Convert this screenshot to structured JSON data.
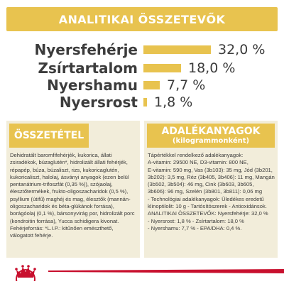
{
  "banner": {
    "title": "ANALITIKAI ÖSSZETEVŐK"
  },
  "nutrients": [
    {
      "label": "Nyersfehérje",
      "value": "32,0 %",
      "fraction": 0.32
    },
    {
      "label": "Zsírtartalom",
      "value": "18,0 %",
      "fraction": 0.18
    },
    {
      "label": "Nyershamu",
      "value": "7,7 %",
      "fraction": 0.077
    },
    {
      "label": "Nyersrost",
      "value": "1,8 %",
      "fraction": 0.018
    }
  ],
  "composition": {
    "title": "ÖSSZETÉTEL",
    "text": "Dehidratált baromfifehérjék, kukorica, állati zsiradékok, búzaglutén*, hidrolizált állati fehérjék, répapép, búza, búzaliszt, rizs, kukoricaglutén, kukoricaliszt, halolaj, ásványi anyagok (ezen belül pentanátrium-trifoszfát (0,35 %)), szójaolaj, élesztőtermékek, frukto-oligoszacharidok (0,5 %), psyllium (útifű) maghéj és mag, élesztők (mannán-oligoszacharidok és béta-glükánok forrása), borágóolaj (0,1 %), bársonyvirág por, hidrolizált porc (kondroitin forrása), Yucca schidigera kivonat. Fehérjeforrás: *L.I.P.: kitűnően emészthető, válogatott fehérje."
  },
  "additives": {
    "title": "ADALÉKANYAGOK",
    "subtitle": "(kilogrammonként)",
    "lines": [
      "Tápértékkel rendelkező adalékanyagok:",
      "A-vitamin: 29500 NE, D3-vitamin: 800 NE,",
      "E-vitamin: 590 mg, Vas (3b103): 35 mg, Jód (3b201,",
      "3b202): 3,5 mg, Réz (3b405, 3b406): 11 mg, Mangán",
      "(3b502, 3b504): 46 mg, Cink (3b603, 3b605,",
      "3b606): 96 mg, Szelén (3b801, 3b811): 0,06 mg",
      "- Technológiai adalékanyagok: Üledékes eredetű",
      "klinoptilolit: 10 g - Tartósítószerek - Antioxidánsok.",
      "ANALITIKAI ÖSSZETEVŐK: Nyersfehérje: 32,0 %",
      "- Nyersrost: 1,8 % - Zsírtartalom: 18,0 %",
      "- Nyershamu: 7,7 % - EPA/DHA: 0,4 %."
    ]
  },
  "colors": {
    "accent": "#e8c34f",
    "panel": "#f2edda",
    "text": "#3c3c3c",
    "brand_red": "#c8102e"
  },
  "icons": {
    "logo": "royal-canin-crown-logo"
  }
}
